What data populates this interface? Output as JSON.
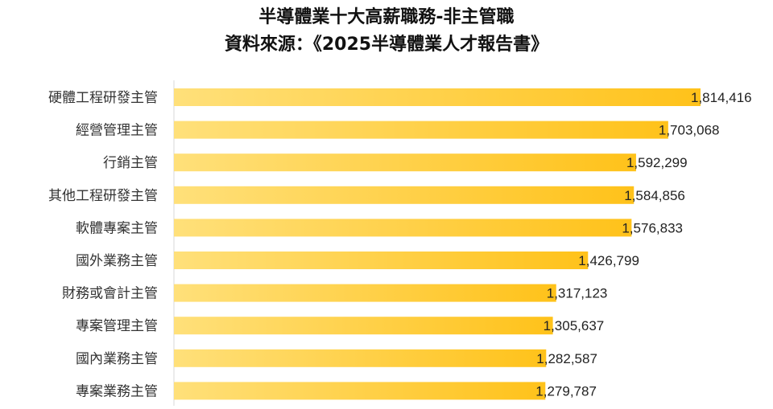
{
  "chart_data": {
    "type": "bar",
    "orientation": "horizontal",
    "title": "半導體業十大高薪職務-非主管職",
    "subtitle": "資料來源：《2025半導體業人才報告書》",
    "categories": [
      "硬體工程研發主管",
      "經營管理主管",
      "行銷主管",
      "其他工程研發主管",
      "軟體專案主管",
      "國外業務主管",
      "財務或會計主管",
      "專案管理主管",
      "國內業務主管",
      "專案業務主管"
    ],
    "values": [
      1814416,
      1703068,
      1592299,
      1584856,
      1576833,
      1426799,
      1317123,
      1305637,
      1282587,
      1279787
    ],
    "value_labels": [
      "1,814,416",
      "1,703,068",
      "1,592,299",
      "1,584,856",
      "1,576,833",
      "1,426,799",
      "1,317,123",
      "1,305,637",
      "1,282,587",
      "1,279,787"
    ],
    "bar_color_start": "#FFE07A",
    "bar_color_end": "#FFC21A",
    "grid": false
  }
}
